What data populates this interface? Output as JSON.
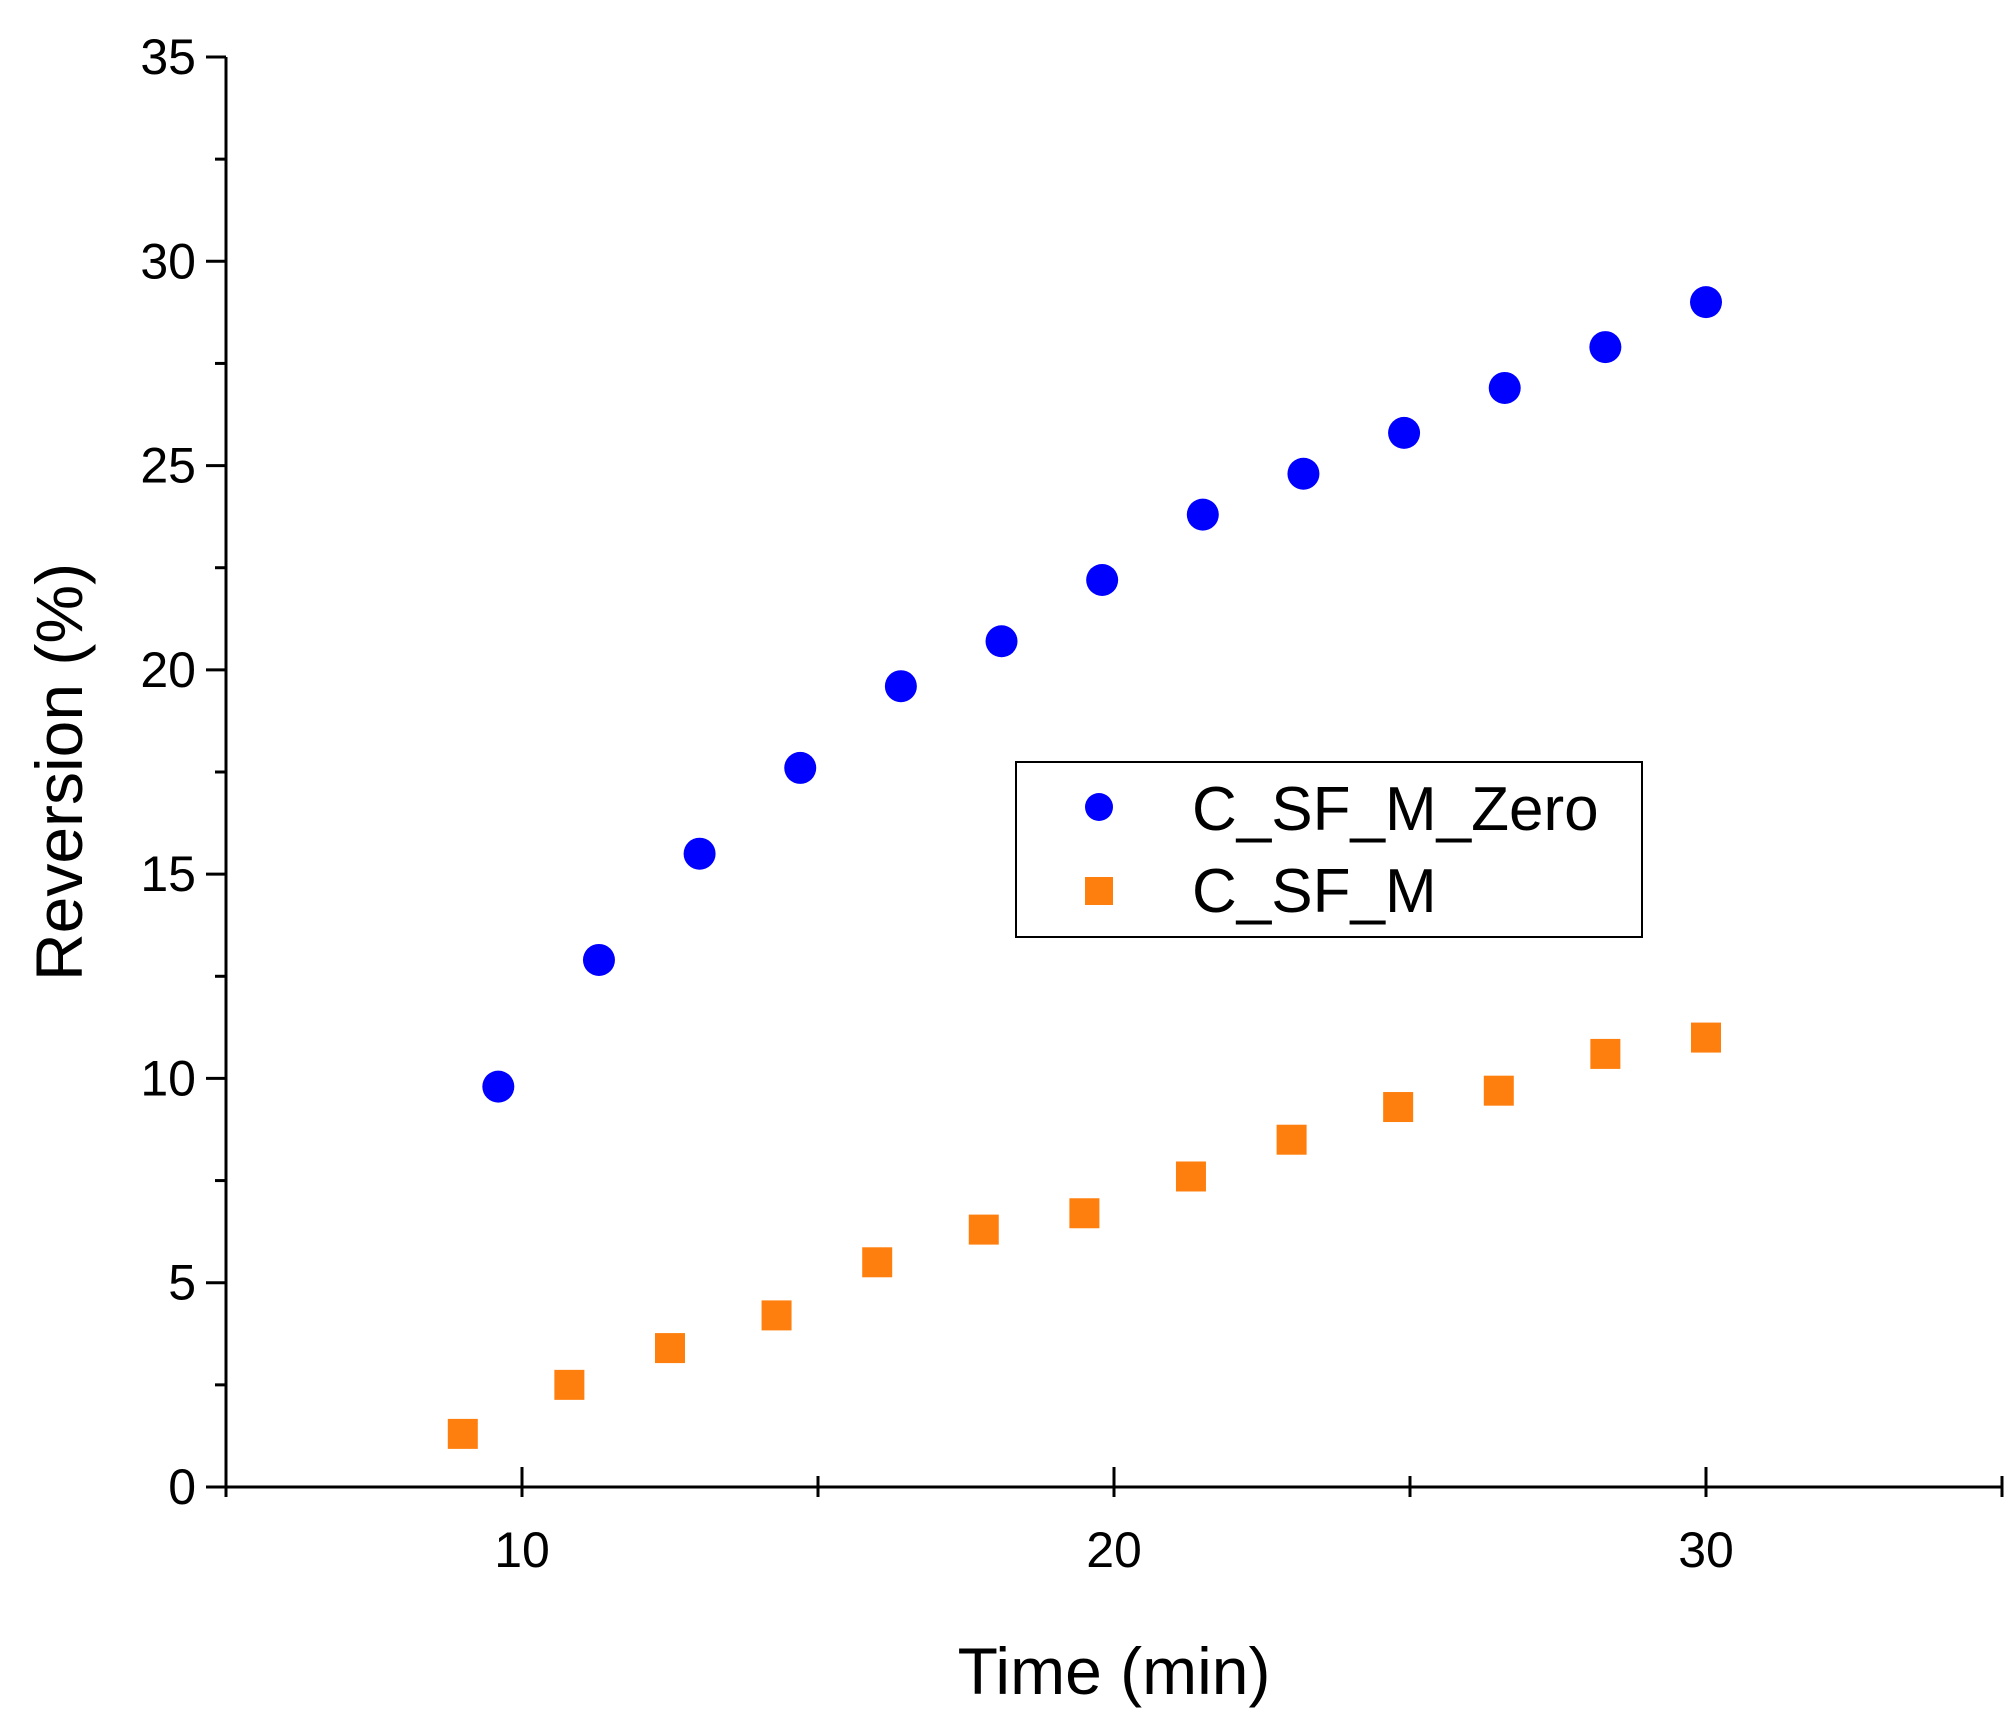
{
  "chart_data": {
    "type": "scatter",
    "title": "",
    "xlabel": "Time (min)",
    "ylabel": "Reversion (%)",
    "xlim": [
      5,
      35
    ],
    "ylim": [
      0,
      35
    ],
    "x_major_ticks": [
      10,
      20,
      30
    ],
    "x_minor_ticks": [
      5,
      15,
      25,
      35
    ],
    "y_major_ticks": [
      0,
      5,
      10,
      15,
      20,
      25,
      30,
      35
    ],
    "y_minor_ticks": [
      2.5,
      7.5,
      12.5,
      17.5,
      22.5,
      27.5,
      32.5
    ],
    "legend_position": "center-right",
    "series": [
      {
        "name": "C_SF_M_Zero",
        "marker": "circle",
        "color": "#0000ff",
        "x": [
          9.6,
          11.3,
          13.0,
          14.7,
          16.4,
          18.1,
          19.8,
          21.5,
          23.2,
          24.9,
          26.6,
          28.3,
          30.0
        ],
        "y": [
          9.8,
          12.9,
          15.5,
          17.6,
          19.6,
          20.7,
          22.2,
          23.8,
          24.8,
          25.8,
          26.9,
          27.9,
          29.0
        ]
      },
      {
        "name": "C_SF_M",
        "marker": "square",
        "color": "#ff7f0e",
        "x": [
          9.0,
          10.8,
          12.5,
          14.3,
          16.0,
          17.8,
          19.5,
          21.3,
          23.0,
          24.8,
          26.5,
          28.3,
          30.0
        ],
        "y": [
          1.3,
          2.5,
          3.4,
          4.2,
          5.5,
          6.3,
          6.7,
          7.6,
          8.5,
          9.3,
          9.7,
          10.6,
          11.0
        ]
      }
    ]
  }
}
